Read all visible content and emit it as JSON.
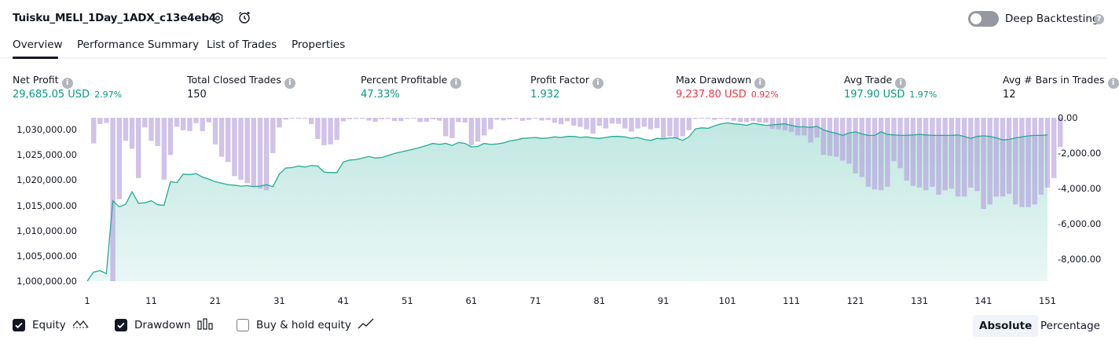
{
  "header": {
    "strategy_name": "Tuisku_MELI_1Day_1ADX_c13e4eb4",
    "deep_backtesting_label": "Deep Backtesting",
    "deep_backtesting_on": false,
    "help_glyph": "?"
  },
  "tabs": [
    {
      "label": "Overview",
      "active": true
    },
    {
      "label": "Performance Summary",
      "active": false
    },
    {
      "label": "List of Trades",
      "active": false
    },
    {
      "label": "Properties",
      "active": false
    }
  ],
  "stats": [
    {
      "label": "Net Profit",
      "value": "29,685.05 USD",
      "pct": "2.97%",
      "color": "green"
    },
    {
      "label": "Total Closed Trades",
      "value": "150",
      "pct": "",
      "color": "dark"
    },
    {
      "label": "Percent Profitable",
      "value": "47.33%",
      "pct": "",
      "color": "green"
    },
    {
      "label": "Profit Factor",
      "value": "1.932",
      "pct": "",
      "color": "green"
    },
    {
      "label": "Max Drawdown",
      "value": "9,237.80 USD",
      "pct": "0.92%",
      "color": "red"
    },
    {
      "label": "Avg Trade",
      "value": "197.90 USD",
      "pct": "1.97%",
      "color": "green"
    },
    {
      "label": "Avg # Bars in Trades",
      "value": "12",
      "pct": "",
      "color": "dark"
    }
  ],
  "info_glyph": "i",
  "chart_data": {
    "type": "area",
    "equity_axis": {
      "ticks": [
        "1,030,000.00",
        "1,025,000.00",
        "1,020,000.00",
        "1,015,000.00",
        "1,010,000.00",
        "1,005,000.00",
        "1,000,000.00"
      ],
      "range": [
        1000000,
        1032500
      ]
    },
    "drawdown_axis": {
      "ticks": [
        "0.00",
        "-2,000.00",
        "-4,000.00",
        "-6,000.00",
        "-8,000.00"
      ],
      "range": [
        0,
        -9237.8
      ]
    },
    "x_ticks": [
      "1",
      "11",
      "21",
      "31",
      "41",
      "51",
      "61",
      "71",
      "81",
      "91",
      "101",
      "111",
      "121",
      "131",
      "141",
      "151"
    ],
    "equity": [
      1000000,
      1001800,
      1002100,
      1001500,
      1016000,
      1014800,
      1015300,
      1017800,
      1015500,
      1015600,
      1016000,
      1015200,
      1015100,
      1019800,
      1019600,
      1021300,
      1021200,
      1021400,
      1020700,
      1020300,
      1019800,
      1019500,
      1019200,
      1019100,
      1018900,
      1019000,
      1018800,
      1018900,
      1019200,
      1018800,
      1021300,
      1022500,
      1022600,
      1022900,
      1022700,
      1023000,
      1022900,
      1021700,
      1021600,
      1021600,
      1023700,
      1024100,
      1024200,
      1024500,
      1024800,
      1024500,
      1024600,
      1025000,
      1025400,
      1025700,
      1026000,
      1026300,
      1026600,
      1027000,
      1027400,
      1027200,
      1027400,
      1027000,
      1027600,
      1027400,
      1026700,
      1026800,
      1027400,
      1027200,
      1027300,
      1027500,
      1027900,
      1028100,
      1028400,
      1028500,
      1028600,
      1028400,
      1028500,
      1028700,
      1028600,
      1028800,
      1028800,
      1028600,
      1028700,
      1028500,
      1028400,
      1028600,
      1028800,
      1028800,
      1028700,
      1028400,
      1028600,
      1028200,
      1028000,
      1028400,
      1028300,
      1028500,
      1028500,
      1028000,
      1028700,
      1030300,
      1030500,
      1030400,
      1030900,
      1031300,
      1031500,
      1031300,
      1031200,
      1031000,
      1031400,
      1031200,
      1031000,
      1031100,
      1031200,
      1031300,
      1031000,
      1030700,
      1030700,
      1030600,
      1030800,
      1030100,
      1029700,
      1029400,
      1029000,
      1029500,
      1029700,
      1029300,
      1029000,
      1029000,
      1029700,
      1029200,
      1029100,
      1029000,
      1029000,
      1029100,
      1029200,
      1029100,
      1029000,
      1029000,
      1029000,
      1029000,
      1029100,
      1028800,
      1028400,
      1028800,
      1028900,
      1028800,
      1028500,
      1028100,
      1028200,
      1028500,
      1028700,
      1028900,
      1029000,
      1029000,
      1029100
    ],
    "drawdown": [
      0,
      -1450,
      -350,
      -290,
      -9237.8,
      -4600,
      -1300,
      -1750,
      -3400,
      -550,
      -1300,
      -1600,
      -3500,
      -2100,
      -500,
      -700,
      -750,
      -300,
      -750,
      -250,
      -1500,
      -2200,
      -2500,
      -3300,
      -3500,
      -3700,
      -3900,
      -4000,
      -4100,
      -2000,
      -550,
      -100,
      -50,
      -50,
      -50,
      -350,
      -1200,
      -1550,
      -1500,
      -1250,
      -200,
      -80,
      -60,
      -60,
      -150,
      -220,
      -80,
      -60,
      -180,
      -180,
      -60,
      -50,
      -240,
      -220,
      -80,
      -160,
      -1050,
      -1150,
      -240,
      -260,
      -1550,
      -1350,
      -1000,
      -650,
      -110,
      -140,
      -90,
      -60,
      -170,
      -120,
      -50,
      -150,
      -120,
      -280,
      -360,
      -190,
      -450,
      -510,
      -650,
      -900,
      -450,
      -600,
      -320,
      -340,
      -600,
      -780,
      -600,
      -500,
      -650,
      -580,
      -1180,
      -1050,
      -1150,
      -1050,
      -700,
      -60,
      -50,
      -60,
      -110,
      -60,
      -70,
      -170,
      -240,
      -250,
      -180,
      -260,
      -270,
      -620,
      -650,
      -700,
      -800,
      -1000,
      -1000,
      -1400,
      -1120,
      -2100,
      -2150,
      -2200,
      -2420,
      -2600,
      -3150,
      -3350,
      -3900,
      -4050,
      -4100,
      -3900,
      -2450,
      -2850,
      -3550,
      -3850,
      -3950,
      -4100,
      -3900,
      -4350,
      -4100,
      -4000,
      -4450,
      -4450,
      -3950,
      -4150,
      -5150,
      -4900,
      -4450,
      -4450,
      -4300,
      -4900,
      -5050,
      -5050,
      -4900,
      -4350,
      -3950,
      -3400,
      -1650
    ]
  },
  "legend": [
    {
      "label": "Equity",
      "checked": true
    },
    {
      "label": "Drawdown",
      "checked": true
    },
    {
      "label": "Buy & hold equity",
      "checked": false
    }
  ],
  "view_modes": [
    {
      "label": "Absolute",
      "active": true
    },
    {
      "label": "Percentage",
      "active": false
    }
  ],
  "colors": {
    "equity_line": "#22ab94",
    "equity_fill": "#22ab94",
    "drawdown_bar": "#b39ddb",
    "positive": "#089981",
    "negative": "#f23645"
  }
}
